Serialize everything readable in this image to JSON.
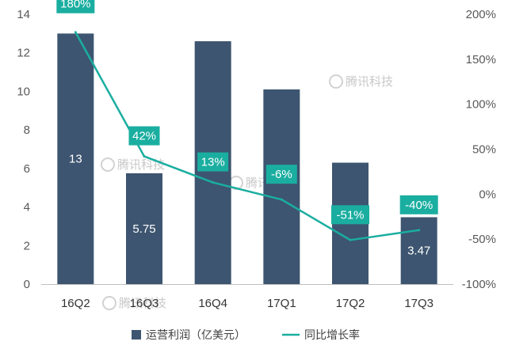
{
  "chart_data": {
    "type": "bar",
    "categories": [
      "16Q2",
      "16Q3",
      "16Q4",
      "17Q1",
      "17Q2",
      "17Q3"
    ],
    "series": [
      {
        "name": "运营利润（亿美元）",
        "type": "bar",
        "axis": "left",
        "values": [
          13,
          5.75,
          12.6,
          10.1,
          6.3,
          3.47
        ],
        "data_labels": [
          "13",
          "5.75",
          "",
          "",
          "",
          "3.47"
        ],
        "color": "#3d5570"
      },
      {
        "name": "同比增长率",
        "type": "line",
        "axis": "right",
        "values": [
          180,
          42,
          13,
          -6,
          -51,
          -40
        ],
        "data_labels": [
          "180%",
          "42%",
          "13%",
          "-6%",
          "-51%",
          "-40%"
        ],
        "color": "#1aaea0"
      }
    ],
    "y_left": {
      "ylim": [
        0,
        14
      ],
      "ticks": [
        "0",
        "2",
        "4",
        "6",
        "8",
        "10",
        "12",
        "14"
      ]
    },
    "y_right": {
      "ylim": [
        -100,
        200
      ],
      "ticks": [
        "-100%",
        "-50%",
        "0%",
        "50%",
        "100%",
        "150%",
        "200%"
      ]
    },
    "grid": false,
    "legend_position": "bottom",
    "watermark": "腾讯科技"
  }
}
